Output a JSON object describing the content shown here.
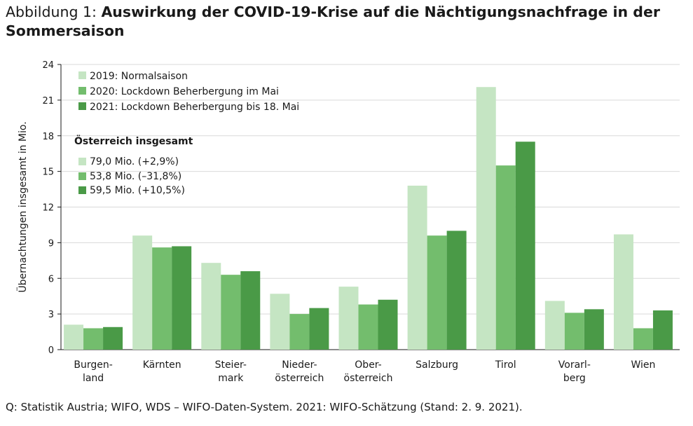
{
  "figure": {
    "prefix": "Abbildung 1: ",
    "title": "Auswirkung der COVID-19-Krise auf die Nächtigungsnachfrage in der Sommersaison",
    "source": "Q: Statistik Austria; WIFO, WDS – WIFO-Daten-System. 2021: WIFO-Schätzung (Stand: 2. 9. 2021)."
  },
  "chart_data": {
    "type": "bar",
    "ylabel": "Übernachtungen insgesamt in Mio.",
    "ylim": [
      0,
      24
    ],
    "yticks": [
      0,
      3,
      6,
      9,
      12,
      15,
      18,
      21,
      24
    ],
    "grid": true,
    "legend_position": "top-left",
    "categories": [
      [
        "Burgen-",
        "land"
      ],
      [
        "Kärnten"
      ],
      [
        "Steier-",
        "mark"
      ],
      [
        "Nieder-",
        "österreich"
      ],
      [
        "Ober-",
        "österreich"
      ],
      [
        "Salzburg"
      ],
      [
        "Tirol"
      ],
      [
        "Vorarl-",
        "berg"
      ],
      [
        "Wien"
      ]
    ],
    "series": [
      {
        "name": "2019: Normalsaison",
        "color": "#c5e5c3",
        "values": [
          2.1,
          9.6,
          7.3,
          4.7,
          5.3,
          13.8,
          22.1,
          4.1,
          9.7
        ]
      },
      {
        "name": "2020: Lockdown Beherbergung im Mai",
        "color": "#73bd6d",
        "values": [
          1.8,
          8.6,
          6.3,
          3.0,
          3.8,
          9.6,
          15.5,
          3.1,
          1.8
        ]
      },
      {
        "name": "2021: Lockdown Beherbergung bis 18. Mai",
        "color": "#4a9a47",
        "values": [
          1.9,
          8.7,
          6.6,
          3.5,
          4.2,
          10.0,
          17.5,
          3.4,
          3.3
        ]
      }
    ],
    "totals_heading": "Österreich insgesamt",
    "totals": [
      "79,0 Mio. (+2,9%)",
      "53,8 Mio. (–31,8%)",
      "59,5 Mio. (+10,5%)"
    ]
  }
}
